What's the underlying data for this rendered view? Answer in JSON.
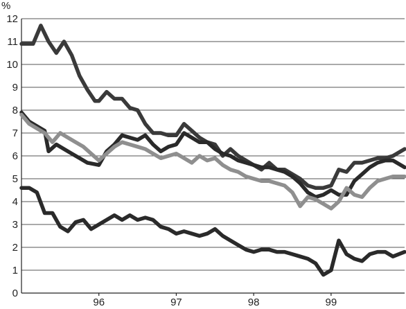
{
  "chart_data": {
    "type": "line",
    "y_unit_label": "%",
    "ylim": [
      0,
      12
    ],
    "xlim": [
      1995.0,
      1999.95
    ],
    "grid": "horizontal",
    "x_ticks": [
      {
        "value": 1996.0,
        "label": "96"
      },
      {
        "value": 1997.0,
        "label": "97"
      },
      {
        "value": 1998.0,
        "label": "98"
      },
      {
        "value": 1999.0,
        "label": "99"
      }
    ],
    "y_ticks": [
      {
        "value": 0,
        "label": "0"
      },
      {
        "value": 1,
        "label": "1"
      },
      {
        "value": 2,
        "label": "2"
      },
      {
        "value": 3,
        "label": "3"
      },
      {
        "value": 4,
        "label": "4"
      },
      {
        "value": 5,
        "label": "5"
      },
      {
        "value": 6,
        "label": "6"
      },
      {
        "value": 7,
        "label": "7"
      },
      {
        "value": 8,
        "label": "8"
      },
      {
        "value": 9,
        "label": "9"
      },
      {
        "value": 10,
        "label": "10"
      },
      {
        "value": 11,
        "label": "11"
      },
      {
        "value": 12,
        "label": "12"
      }
    ],
    "series": [
      {
        "color": "#3a3a3a",
        "x": [
          1995.0,
          1995.15,
          1995.25,
          1995.35,
          1995.45,
          1995.55,
          1995.65,
          1995.75,
          1995.85,
          1995.95,
          1996.0,
          1996.1,
          1996.2,
          1996.3,
          1996.4,
          1996.5,
          1996.6,
          1996.7,
          1996.8,
          1996.9,
          1997.0,
          1997.1,
          1997.2,
          1997.3,
          1997.4,
          1997.5,
          1997.6,
          1997.7,
          1997.8,
          1997.9,
          1998.0,
          1998.1,
          1998.2,
          1998.3,
          1998.4,
          1998.5,
          1998.6,
          1998.7,
          1998.8,
          1998.9,
          1999.0,
          1999.1,
          1999.2,
          1999.3,
          1999.4,
          1999.5,
          1999.6,
          1999.7,
          1999.8,
          1999.95
        ],
        "y": [
          10.9,
          10.9,
          11.7,
          11.0,
          10.5,
          11.0,
          10.4,
          9.5,
          8.9,
          8.4,
          8.4,
          8.8,
          8.5,
          8.5,
          8.1,
          8.0,
          7.4,
          7.0,
          7.0,
          6.9,
          6.9,
          7.4,
          7.1,
          6.8,
          6.6,
          6.5,
          6.0,
          6.3,
          6.0,
          5.8,
          5.6,
          5.4,
          5.7,
          5.4,
          5.4,
          5.2,
          5.0,
          4.7,
          4.6,
          4.6,
          4.7,
          5.4,
          5.3,
          5.7,
          5.7,
          5.8,
          5.9,
          5.9,
          6.0,
          6.3
        ]
      },
      {
        "color": "#2a2a2a",
        "x": [
          1995.0,
          1995.1,
          1995.2,
          1995.3,
          1995.35,
          1995.45,
          1995.55,
          1995.65,
          1995.75,
          1995.85,
          1996.0,
          1996.1,
          1996.2,
          1996.3,
          1996.4,
          1996.5,
          1996.6,
          1996.7,
          1996.8,
          1996.9,
          1997.0,
          1997.1,
          1997.2,
          1997.3,
          1997.4,
          1997.5,
          1997.6,
          1997.7,
          1997.8,
          1997.9,
          1998.0,
          1998.1,
          1998.2,
          1998.3,
          1998.4,
          1998.5,
          1998.6,
          1998.7,
          1998.8,
          1998.9,
          1999.0,
          1999.1,
          1999.2,
          1999.3,
          1999.4,
          1999.5,
          1999.6,
          1999.7,
          1999.8,
          1999.95
        ],
        "y": [
          7.9,
          7.5,
          7.3,
          7.1,
          6.2,
          6.5,
          6.3,
          6.1,
          5.9,
          5.7,
          5.6,
          6.2,
          6.5,
          6.9,
          6.8,
          6.7,
          6.9,
          6.5,
          6.2,
          6.4,
          6.5,
          7.0,
          6.8,
          6.6,
          6.6,
          6.3,
          6.1,
          6.0,
          5.8,
          5.7,
          5.6,
          5.5,
          5.5,
          5.4,
          5.3,
          5.1,
          4.8,
          4.4,
          4.2,
          4.3,
          4.5,
          4.3,
          4.3,
          4.9,
          5.2,
          5.5,
          5.7,
          5.8,
          5.8,
          5.5
        ]
      },
      {
        "color": "#8f8f8f",
        "x": [
          1995.0,
          1995.1,
          1995.2,
          1995.3,
          1995.4,
          1995.5,
          1995.6,
          1995.7,
          1995.8,
          1995.9,
          1996.0,
          1996.1,
          1996.2,
          1996.3,
          1996.4,
          1996.5,
          1996.6,
          1996.7,
          1996.8,
          1996.9,
          1997.0,
          1997.1,
          1997.2,
          1997.3,
          1997.4,
          1997.5,
          1997.6,
          1997.7,
          1997.8,
          1997.9,
          1998.0,
          1998.1,
          1998.2,
          1998.3,
          1998.4,
          1998.5,
          1998.6,
          1998.7,
          1998.8,
          1998.9,
          1999.0,
          1999.1,
          1999.2,
          1999.3,
          1999.4,
          1999.5,
          1999.6,
          1999.7,
          1999.8,
          1999.95
        ],
        "y": [
          7.8,
          7.4,
          7.2,
          7.0,
          6.6,
          7.0,
          6.8,
          6.6,
          6.4,
          6.1,
          5.8,
          6.1,
          6.4,
          6.6,
          6.5,
          6.4,
          6.3,
          6.1,
          5.9,
          6.0,
          6.1,
          5.9,
          5.7,
          6.0,
          5.8,
          5.9,
          5.6,
          5.4,
          5.3,
          5.1,
          5.0,
          4.9,
          4.9,
          4.8,
          4.7,
          4.4,
          3.8,
          4.2,
          4.1,
          3.9,
          3.7,
          4.0,
          4.6,
          4.3,
          4.2,
          4.6,
          4.9,
          5.0,
          5.1,
          5.1
        ]
      },
      {
        "color": "#2a2a2a",
        "x": [
          1995.0,
          1995.1,
          1995.2,
          1995.3,
          1995.4,
          1995.5,
          1995.6,
          1995.7,
          1995.8,
          1995.9,
          1996.0,
          1996.1,
          1996.2,
          1996.3,
          1996.4,
          1996.5,
          1996.6,
          1996.7,
          1996.8,
          1996.9,
          1997.0,
          1997.1,
          1997.2,
          1997.3,
          1997.4,
          1997.5,
          1997.6,
          1997.7,
          1997.8,
          1997.9,
          1998.0,
          1998.1,
          1998.2,
          1998.3,
          1998.4,
          1998.5,
          1998.6,
          1998.7,
          1998.8,
          1998.9,
          1999.0,
          1999.1,
          1999.2,
          1999.3,
          1999.4,
          1999.5,
          1999.6,
          1999.7,
          1999.8,
          1999.95
        ],
        "y": [
          4.6,
          4.6,
          4.4,
          3.5,
          3.5,
          2.9,
          2.7,
          3.1,
          3.2,
          2.8,
          3.0,
          3.2,
          3.4,
          3.2,
          3.4,
          3.2,
          3.3,
          3.2,
          2.9,
          2.8,
          2.6,
          2.7,
          2.6,
          2.5,
          2.6,
          2.8,
          2.5,
          2.3,
          2.1,
          1.9,
          1.8,
          1.9,
          1.9,
          1.8,
          1.8,
          1.7,
          1.6,
          1.5,
          1.3,
          0.8,
          1.0,
          2.3,
          1.7,
          1.5,
          1.4,
          1.7,
          1.8,
          1.8,
          1.6,
          1.8
        ]
      }
    ]
  }
}
